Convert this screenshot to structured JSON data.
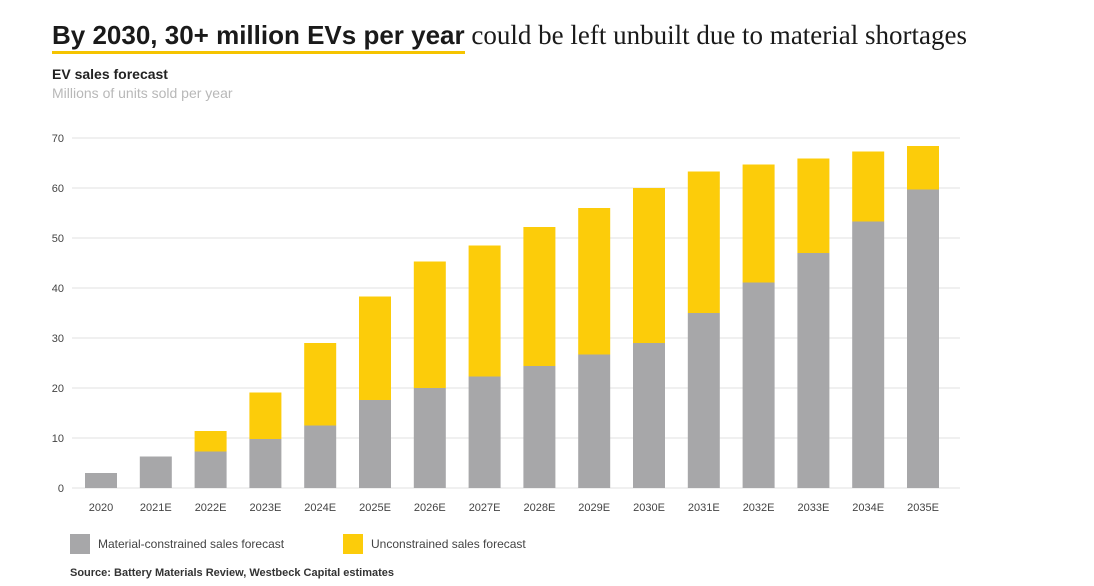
{
  "headline": {
    "bold": "By 2030, 30+ million EVs per year",
    "rest": " could be left unbuilt due to material shortages"
  },
  "chart_data": {
    "type": "bar",
    "stacked": true,
    "title": "EV sales forecast",
    "subtitle": "Millions of units sold per year",
    "xlabel": "",
    "ylabel": "",
    "ylim": [
      0,
      70
    ],
    "yticks": [
      0,
      10,
      20,
      30,
      40,
      50,
      60,
      70
    ],
    "grid": true,
    "legend_position": "bottom-left",
    "categories": [
      "2020",
      "2021E",
      "2022E",
      "2023E",
      "2024E",
      "2025E",
      "2026E",
      "2027E",
      "2028E",
      "2029E",
      "2030E",
      "2031E",
      "2032E",
      "2033E",
      "2034E",
      "2035E"
    ],
    "series": [
      {
        "name": "Material-constrained sales forecast",
        "color": "#a7a7a9",
        "values": [
          3,
          6.3,
          7.3,
          9.8,
          12.5,
          17.6,
          20,
          22.3,
          24.4,
          26.7,
          29,
          35,
          41.1,
          47,
          53.3,
          59.7
        ]
      },
      {
        "name": "Unconstrained sales forecast",
        "color": "#fccc0a",
        "values": [
          0,
          0,
          4.1,
          9.3,
          16.5,
          20.7,
          25.3,
          26.2,
          27.8,
          29.3,
          31,
          28.3,
          23.6,
          18.9,
          14,
          8.7
        ]
      }
    ]
  },
  "source": "Source: Battery Materials Review, Westbeck Capital estimates"
}
